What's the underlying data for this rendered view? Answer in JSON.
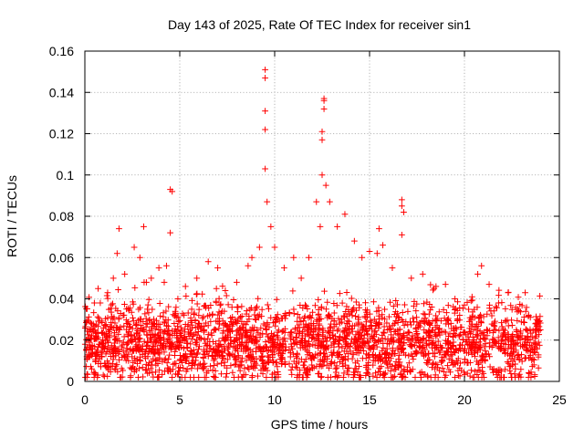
{
  "chart_data": {
    "type": "scatter",
    "title": "Day 143 of 2025, Rate Of TEC Index for receiver sin1",
    "xlabel": "GPS time / hours",
    "ylabel": "ROTI / TECUs",
    "xlim": [
      0,
      25
    ],
    "ylim": [
      0,
      0.16
    ],
    "x_ticks": [
      0,
      5,
      10,
      15,
      20,
      25
    ],
    "x_tick_labels": [
      "0",
      "5",
      "10",
      "15",
      "20",
      "25"
    ],
    "y_ticks": [
      0,
      0.02,
      0.04,
      0.06,
      0.08,
      0.1,
      0.12,
      0.14,
      0.16
    ],
    "y_tick_labels": [
      "0",
      "0.02",
      "0.04",
      "0.06",
      "0.08",
      "0.1",
      "0.12",
      "0.14",
      "0.16"
    ],
    "grid": true,
    "marker": "+",
    "color": "#ff0000",
    "series": [
      {
        "name": "ROTI",
        "points": [
          [
            0.1,
            0.012
          ],
          [
            0.3,
            0.025
          ],
          [
            0.5,
            0.038
          ],
          [
            0.7,
            0.045
          ],
          [
            1.2,
            0.043
          ],
          [
            1.5,
            0.05
          ],
          [
            1.7,
            0.062
          ],
          [
            1.8,
            0.074
          ],
          [
            2.1,
            0.052
          ],
          [
            2.6,
            0.065
          ],
          [
            2.9,
            0.06
          ],
          [
            3.1,
            0.075
          ],
          [
            3.5,
            0.05
          ],
          [
            3.9,
            0.055
          ],
          [
            4.3,
            0.056
          ],
          [
            4.5,
            0.093
          ],
          [
            4.6,
            0.092
          ],
          [
            4.5,
            0.072
          ],
          [
            4.9,
            0.04
          ],
          [
            5.3,
            0.046
          ],
          [
            5.9,
            0.05
          ],
          [
            6.5,
            0.058
          ],
          [
            7.0,
            0.055
          ],
          [
            7.4,
            0.044
          ],
          [
            8.0,
            0.048
          ],
          [
            8.6,
            0.056
          ],
          [
            8.8,
            0.06
          ],
          [
            9.2,
            0.065
          ],
          [
            9.5,
            0.151
          ],
          [
            9.5,
            0.147
          ],
          [
            9.5,
            0.131
          ],
          [
            9.5,
            0.122
          ],
          [
            9.5,
            0.103
          ],
          [
            9.6,
            0.087
          ],
          [
            9.8,
            0.075
          ],
          [
            10.0,
            0.065
          ],
          [
            10.5,
            0.055
          ],
          [
            11.0,
            0.06
          ],
          [
            11.4,
            0.05
          ],
          [
            11.8,
            0.06
          ],
          [
            12.2,
            0.087
          ],
          [
            12.4,
            0.075
          ],
          [
            12.5,
            0.121
          ],
          [
            12.5,
            0.117
          ],
          [
            12.6,
            0.137
          ],
          [
            12.6,
            0.136
          ],
          [
            12.6,
            0.132
          ],
          [
            12.5,
            0.1
          ],
          [
            12.7,
            0.095
          ],
          [
            12.9,
            0.087
          ],
          [
            13.3,
            0.075
          ],
          [
            13.7,
            0.081
          ],
          [
            14.2,
            0.068
          ],
          [
            14.6,
            0.06
          ],
          [
            15.0,
            0.063
          ],
          [
            15.4,
            0.062
          ],
          [
            15.5,
            0.074
          ],
          [
            15.7,
            0.066
          ],
          [
            16.2,
            0.055
          ],
          [
            16.7,
            0.088
          ],
          [
            16.7,
            0.085
          ],
          [
            16.8,
            0.082
          ],
          [
            16.7,
            0.071
          ],
          [
            17.2,
            0.05
          ],
          [
            17.8,
            0.052
          ],
          [
            18.5,
            0.046
          ],
          [
            19.0,
            0.047
          ],
          [
            19.5,
            0.04
          ],
          [
            20.0,
            0.037
          ],
          [
            20.4,
            0.041
          ],
          [
            20.7,
            0.052
          ],
          [
            20.9,
            0.056
          ],
          [
            21.3,
            0.047
          ],
          [
            21.8,
            0.038
          ],
          [
            22.3,
            0.043
          ],
          [
            22.8,
            0.035
          ],
          [
            23.2,
            0.043
          ],
          [
            23.8,
            0.03
          ],
          [
            24.0,
            0.025
          ]
        ]
      }
    ],
    "density_band": {
      "description": "Dense cloud of ROTI samples spanning 0-24 h",
      "x_range": [
        0,
        24
      ],
      "typical_min": 0.004,
      "typical_center": 0.018,
      "typical_max": 0.035
    }
  }
}
